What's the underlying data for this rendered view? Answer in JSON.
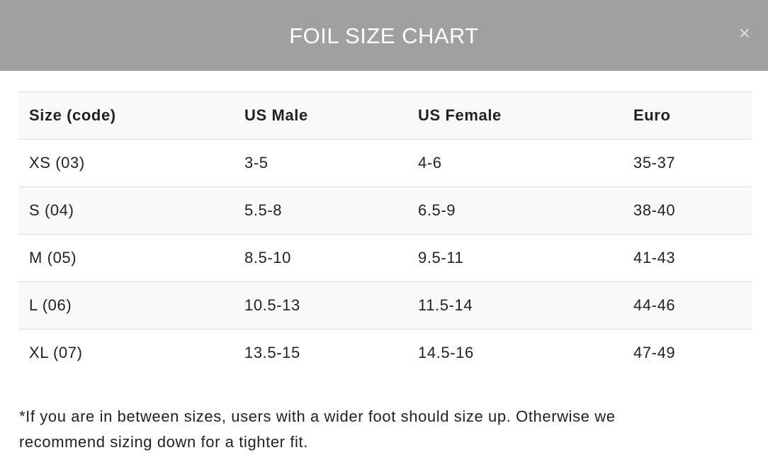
{
  "header": {
    "title": "FOIL SIZE CHART",
    "close": "×"
  },
  "table": {
    "headers": [
      "Size (code)",
      "US Male",
      "US Female",
      "Euro"
    ],
    "rows": [
      [
        "XS (03)",
        "3-5",
        "4-6",
        "35-37"
      ],
      [
        "S (04)",
        "5.5-8",
        "6.5-9",
        "38-40"
      ],
      [
        "M (05)",
        "8.5-10",
        "9.5-11",
        "41-43"
      ],
      [
        "L (06)",
        "10.5-13",
        "11.5-14",
        "44-46"
      ],
      [
        "XL (07)",
        "13.5-15",
        "14.5-16",
        "47-49"
      ]
    ]
  },
  "footnote": "*If you are in between sizes, users with a wider foot should size up. Otherwise we recommend sizing down for a tighter fit."
}
